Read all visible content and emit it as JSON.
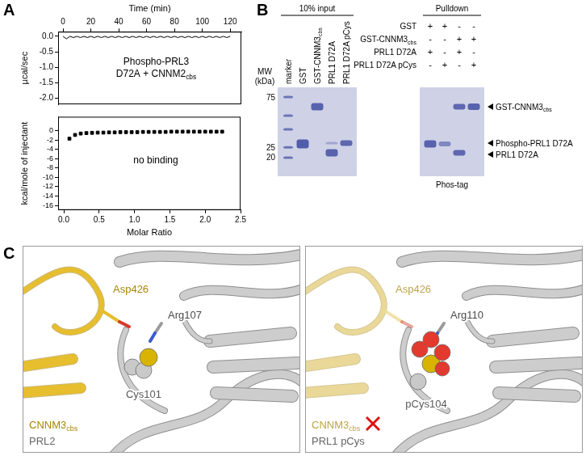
{
  "panel_labels": [
    "A",
    "B",
    "C"
  ],
  "chart_data": [
    {
      "type": "line",
      "x_label": "Time (min)",
      "y_label": "µcal/sec",
      "x": [
        0,
        2.5,
        5,
        7.5,
        10,
        12.5,
        15,
        17.5,
        20,
        22.5,
        25,
        27.5,
        30,
        32.5,
        35,
        37.5,
        40,
        42.5,
        45,
        47.5,
        50,
        52.5,
        55,
        57.5,
        60,
        62.5,
        65,
        67.5,
        70,
        72.5,
        75,
        77.5,
        80,
        82.5,
        85,
        87.5,
        90,
        92.5,
        95,
        97.5,
        100,
        102.5,
        105,
        107.5,
        110,
        112.5,
        115,
        117.5,
        120
      ],
      "values": [
        0,
        -0.08,
        0,
        -0.04,
        0,
        -0.04,
        0,
        -0.04,
        0,
        -0.04,
        0,
        -0.04,
        0,
        -0.04,
        0,
        -0.04,
        0,
        -0.04,
        0,
        -0.04,
        0,
        -0.04,
        0,
        -0.04,
        0,
        -0.04,
        0,
        -0.04,
        0,
        -0.04,
        0,
        -0.04,
        0,
        -0.04,
        0,
        -0.04,
        0,
        -0.04,
        0,
        -0.04,
        0,
        -0.04,
        0,
        -0.04,
        0,
        -0.04,
        0,
        -0.04,
        0
      ],
      "color": "#000000",
      "xlim": [
        -3.5,
        128
      ],
      "xticks": [
        0,
        20,
        40,
        60,
        80,
        100,
        120
      ],
      "ylim": [
        -2.2,
        0.15
      ],
      "yticks": [
        {
          "value": 0,
          "label": "0.0"
        },
        -0.5,
        {
          "value": -1,
          "label": "-1.0"
        },
        -1.5,
        {
          "value": -2,
          "label": "-2.0"
        }
      ],
      "annotation": [
        "Phospho-PRL3",
        [
          {
            "t": "D72A + CNNM2"
          },
          {
            "t": "cbs",
            "sub": true
          }
        ]
      ]
    },
    {
      "type": "scatter",
      "x_label": "Molar Ratio",
      "y_label": "kcal/mole of injectant",
      "x": [
        0.08,
        0.16,
        0.24,
        0.32,
        0.4,
        0.48,
        0.56,
        0.64,
        0.72,
        0.8,
        0.88,
        0.96,
        1.04,
        1.12,
        1.2,
        1.28,
        1.36,
        1.44,
        1.52,
        1.6,
        1.68,
        1.76,
        1.84,
        1.92,
        2,
        2.08,
        2.16,
        2.24
      ],
      "values": [
        -1.7,
        -0.9,
        -0.6,
        -0.5,
        -0.45,
        -0.4,
        -0.4,
        -0.35,
        -0.35,
        -0.3,
        -0.3,
        -0.3,
        -0.3,
        -0.25,
        -0.25,
        -0.25,
        -0.25,
        -0.25,
        -0.2,
        -0.2,
        -0.2,
        -0.2,
        -0.2,
        -0.2,
        -0.2,
        -0.2,
        -0.2,
        -0.2
      ],
      "color": "#000000",
      "marker": "square",
      "xlim": [
        -0.08,
        2.5
      ],
      "xticks": [
        {
          "value": 0,
          "label": "0.0"
        },
        0.5,
        {
          "value": 1,
          "label": "1.0"
        },
        1.5,
        {
          "value": 2,
          "label": "2.0"
        },
        2.5
      ],
      "ylim": [
        -17,
        3
      ],
      "yticks": [
        0,
        -2,
        -4,
        -6,
        -8,
        -10,
        -12,
        -14,
        -16
      ],
      "annotation": "no binding"
    }
  ],
  "gel": {
    "mw_label": [
      "MW",
      "(kDa)"
    ],
    "mw_ticks": [
      75,
      25,
      20
    ],
    "input": {
      "title": "10% input",
      "lanes": [
        "marker",
        "GST",
        [
          {
            "t": "GST-CNNM3"
          },
          {
            "t": "cbs",
            "sub": true
          }
        ],
        "PRL1 D72A",
        "PRL1 D72A pCys"
      ]
    },
    "pulldown": {
      "title": "Pulldown",
      "rows": [
        {
          "name": "GST",
          "signs": [
            "+",
            "+",
            "-",
            "-"
          ]
        },
        {
          "name": [
            {
              "t": "GST-CNNM3"
            },
            {
              "t": "cbs",
              "sub": true
            }
          ],
          "signs": [
            "-",
            "-",
            "+",
            "+"
          ]
        },
        {
          "name": "PRL1 D72A",
          "signs": [
            "+",
            "-",
            "+",
            "-"
          ]
        },
        {
          "name": "PRL1 D72A pCys",
          "signs": [
            "-",
            "+",
            "-",
            "+"
          ]
        }
      ],
      "footer": "Phos-tag"
    },
    "band_labels": [
      [
        {
          "t": "GST-CNNM3"
        },
        {
          "t": "cbs",
          "sub": true
        }
      ],
      "Phospho-PRL1 D72A",
      "PRL1 D72A"
    ]
  },
  "structures": [
    {
      "bound": true,
      "labels": {
        "asp": "Asp426",
        "arg": "Arg107",
        "cys": "Cys101",
        "partner": [
          {
            "t": "CNNM3"
          },
          {
            "t": "cbs",
            "sub": true
          }
        ],
        "protein": "PRL2"
      }
    },
    {
      "bound": false,
      "labels": {
        "asp": "Asp426",
        "arg": "Arg110",
        "cys": "pCys104",
        "partner": [
          {
            "t": "CNNM3"
          },
          {
            "t": "cbs",
            "sub": true
          }
        ],
        "protein": "PRL1 pCys"
      }
    }
  ]
}
